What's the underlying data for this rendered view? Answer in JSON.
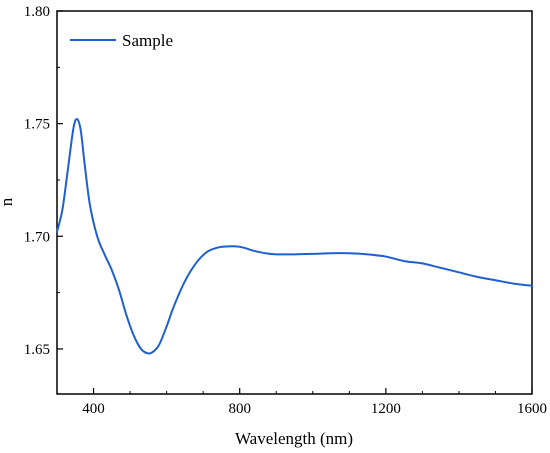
{
  "chart_data": {
    "type": "line",
    "title": "",
    "xlabel": "Wavelength (nm)",
    "ylabel": "n",
    "xlim": [
      300,
      1600
    ],
    "ylim": [
      1.63,
      1.8
    ],
    "x_ticks": [
      400,
      800,
      1200,
      1600
    ],
    "x_tick_labels": [
      "400",
      "800",
      "1200",
      "1600"
    ],
    "x_minor_ticks": [
      300,
      500,
      600,
      700,
      900,
      1000,
      1100,
      1300,
      1400,
      1500
    ],
    "y_ticks": [
      1.65,
      1.7,
      1.75,
      1.8
    ],
    "y_tick_labels": [
      "1.65",
      "1.70",
      "1.75",
      "1.80"
    ],
    "y_minor_ticks": [
      1.675,
      1.725,
      1.775
    ],
    "grid": false,
    "legend_position": "top-left",
    "series": [
      {
        "name": "Sample",
        "color": "#1f5fcf",
        "x": [
          300,
          315,
          330,
          345,
          355,
          365,
          375,
          390,
          410,
          430,
          450,
          470,
          490,
          510,
          530,
          550,
          565,
          580,
          600,
          620,
          650,
          680,
          710,
          740,
          770,
          790,
          810,
          840,
          870,
          900,
          950,
          1000,
          1050,
          1100,
          1150,
          1200,
          1250,
          1300,
          1350,
          1400,
          1450,
          1500,
          1550,
          1600
        ],
        "values": [
          1.702,
          1.712,
          1.73,
          1.748,
          1.752,
          1.747,
          1.733,
          1.714,
          1.7,
          1.692,
          1.685,
          1.676,
          1.665,
          1.656,
          1.65,
          1.648,
          1.649,
          1.652,
          1.66,
          1.669,
          1.68,
          1.688,
          1.693,
          1.695,
          1.6955,
          1.6955,
          1.695,
          1.6935,
          1.6925,
          1.692,
          1.692,
          1.6922,
          1.6925,
          1.6925,
          1.692,
          1.691,
          1.689,
          1.688,
          1.686,
          1.684,
          1.682,
          1.6805,
          1.679,
          1.678
        ]
      }
    ]
  }
}
